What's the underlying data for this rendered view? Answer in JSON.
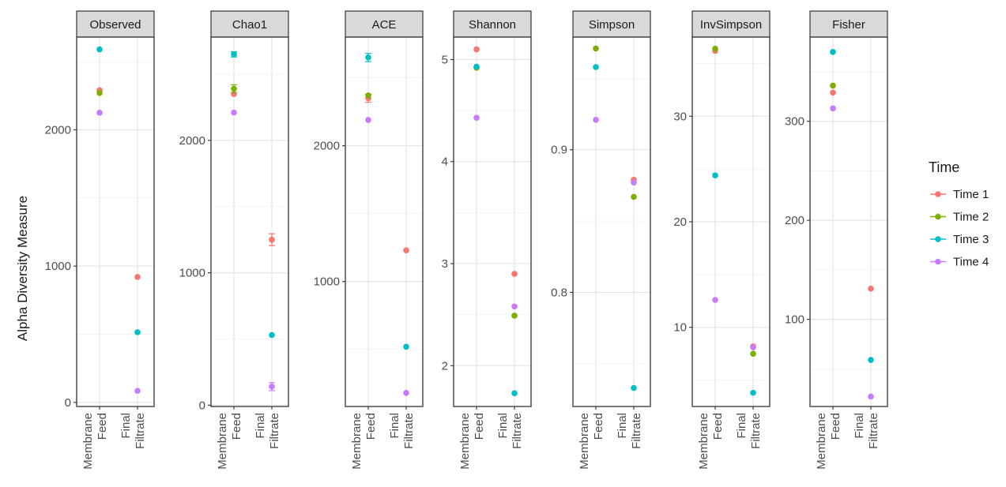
{
  "colors": {
    "Time 1": "#f8766d",
    "Time 2": "#7cae00",
    "Time 3": "#00bfc4",
    "Time 4": "#c77cff"
  },
  "chart_data": {
    "type": "scatter",
    "ylabel": "Alpha Diversity Measure",
    "xlabel": "",
    "grid": true,
    "legend": {
      "title": "Time",
      "placement": "right",
      "entries": [
        "Time 1",
        "Time 2",
        "Time 3",
        "Time 4"
      ]
    },
    "categories": [
      "Membrane Feed",
      "Final Filtrate"
    ],
    "category_tick_lines": [
      [
        "Membrane",
        "Feed"
      ],
      [
        "Final",
        "Filtrate"
      ]
    ],
    "facets": [
      {
        "title": "Observed",
        "ylim": [
          -30,
          2680
        ],
        "yticks": [
          0,
          1000,
          2000
        ],
        "series": [
          {
            "name": "Time 1",
            "values": [
              2290,
              920
            ]
          },
          {
            "name": "Time 2",
            "values": [
              2270,
              null
            ]
          },
          {
            "name": "Time 3",
            "values": [
              2590,
              515
            ]
          },
          {
            "name": "Time 4",
            "values": [
              2125,
              85
            ]
          }
        ]
      },
      {
        "title": "Chao1",
        "ylim": [
          -10,
          2780
        ],
        "yticks": [
          0,
          1000,
          2000
        ],
        "series": [
          {
            "name": "Time 1",
            "values": [
              2350,
              1250
            ],
            "errors": [
              null,
              45
            ]
          },
          {
            "name": "Time 2",
            "values": [
              2390,
              null
            ],
            "errors": [
              30,
              null
            ]
          },
          {
            "name": "Time 3",
            "values": [
              2650,
              530
            ],
            "errors": [
              20,
              null
            ]
          },
          {
            "name": "Time 4",
            "values": [
              2210,
              140
            ],
            "errors": [
              null,
              30
            ]
          }
        ]
      },
      {
        "title": "ACE",
        "ylim": [
          80,
          2800
        ],
        "yticks": [
          1000,
          2000
        ],
        "series": [
          {
            "name": "Time 1",
            "values": [
              2350,
              1230
            ],
            "errors": [
              30,
              null
            ]
          },
          {
            "name": "Time 2",
            "values": [
              2370,
              null
            ],
            "errors": [
              null,
              null
            ]
          },
          {
            "name": "Time 3",
            "values": [
              2650,
              520
            ],
            "errors": [
              30,
              null
            ]
          },
          {
            "name": "Time 4",
            "values": [
              2190,
              180
            ],
            "errors": [
              null,
              null
            ]
          }
        ]
      },
      {
        "title": "Shannon",
        "ylim": [
          1.6,
          5.22
        ],
        "yticks": [
          2,
          3,
          4,
          5
        ],
        "series": [
          {
            "name": "Time 1",
            "values": [
              5.1,
              2.9
            ]
          },
          {
            "name": "Time 2",
            "values": [
              4.92,
              2.49
            ]
          },
          {
            "name": "Time 3",
            "values": [
              4.93,
              1.73
            ]
          },
          {
            "name": "Time 4",
            "values": [
              4.43,
              2.58
            ]
          }
        ]
      },
      {
        "title": "Simpson",
        "ylim": [
          0.72,
          0.979
        ],
        "yticks": [
          0.8,
          0.9
        ],
        "series": [
          {
            "name": "Time 1",
            "values": [
              null,
              0.879
            ]
          },
          {
            "name": "Time 2",
            "values": [
              0.971,
              0.867
            ]
          },
          {
            "name": "Time 3",
            "values": [
              0.958,
              0.733
            ]
          },
          {
            "name": "Time 4",
            "values": [
              0.921,
              0.877
            ]
          }
        ]
      },
      {
        "title": "InvSimpson",
        "ylim": [
          2.5,
          37.5
        ],
        "yticks": [
          10,
          20,
          30
        ],
        "series": [
          {
            "name": "Time 1",
            "values": [
              36.2,
              8.2
            ]
          },
          {
            "name": "Time 2",
            "values": [
              36.4,
              7.5
            ]
          },
          {
            "name": "Time 3",
            "values": [
              null,
              3.8
            ]
          },
          {
            "name": "Time 4",
            "values": [
              12.6,
              8.1
            ]
          },
          {
            "name": "Time 3",
            "values": [
              24.4,
              null
            ]
          }
        ]
      },
      {
        "title": "Fisher",
        "ylim": [
          12,
          385
        ],
        "yticks": [
          100,
          200,
          300
        ],
        "series": [
          {
            "name": "Time 1",
            "values": [
              329,
              131
            ]
          },
          {
            "name": "Time 2",
            "values": [
              336,
              null
            ]
          },
          {
            "name": "Time 3",
            "values": [
              370,
              59
            ]
          },
          {
            "name": "Time 4",
            "values": [
              313,
              22
            ]
          }
        ]
      }
    ]
  }
}
